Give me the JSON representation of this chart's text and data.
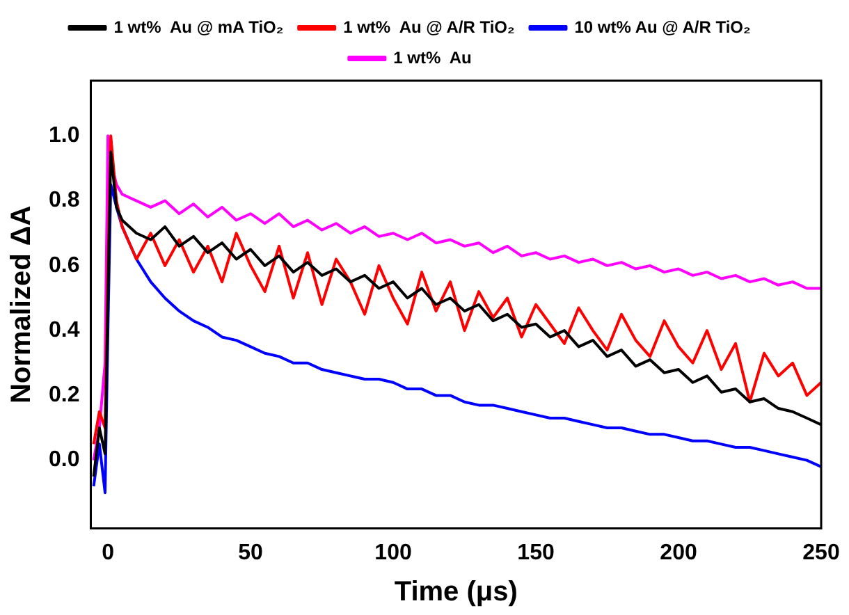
{
  "chart_data": {
    "type": "line",
    "xlabel": "Time (μs)",
    "ylabel": "Normalized ΔA",
    "x": [
      -5,
      -3,
      -1,
      0,
      1,
      3,
      5,
      10,
      15,
      20,
      25,
      30,
      35,
      40,
      45,
      50,
      55,
      60,
      65,
      70,
      75,
      80,
      85,
      90,
      95,
      100,
      105,
      110,
      115,
      120,
      125,
      130,
      135,
      140,
      145,
      150,
      155,
      160,
      165,
      170,
      175,
      180,
      185,
      190,
      195,
      200,
      205,
      210,
      215,
      220,
      225,
      230,
      235,
      240,
      245,
      250
    ],
    "xlim": [
      -6,
      250
    ],
    "xticks": [
      0,
      50,
      100,
      150,
      200,
      250
    ],
    "ylim": [
      -0.21,
      1.17
    ],
    "yticks": [
      {
        "value": 0,
        "label": "0.0"
      },
      0.2,
      0.4,
      0.6,
      0.8,
      {
        "value": 1,
        "label": "1.0"
      }
    ],
    "legend": "top",
    "grid": false,
    "marker": "none",
    "line_style": "solid",
    "series": [
      {
        "name": "1 wt%  Au @ mA TiO₂",
        "color": "#000000",
        "values": [
          -0.05,
          0.1,
          0.02,
          0.5,
          0.95,
          0.78,
          0.74,
          0.7,
          0.68,
          0.72,
          0.66,
          0.69,
          0.64,
          0.67,
          0.62,
          0.65,
          0.6,
          0.63,
          0.58,
          0.61,
          0.57,
          0.59,
          0.55,
          0.57,
          0.53,
          0.55,
          0.5,
          0.53,
          0.48,
          0.5,
          0.46,
          0.48,
          0.43,
          0.45,
          0.41,
          0.42,
          0.38,
          0.4,
          0.35,
          0.37,
          0.32,
          0.34,
          0.29,
          0.31,
          0.27,
          0.28,
          0.24,
          0.26,
          0.21,
          0.22,
          0.18,
          0.19,
          0.16,
          0.15,
          0.13,
          0.11
        ]
      },
      {
        "name": "1 wt%  Au @ A/R TiO₂",
        "color": "#ff0000",
        "values": [
          0.05,
          0.15,
          0.1,
          0.6,
          1.0,
          0.8,
          0.72,
          0.62,
          0.7,
          0.6,
          0.68,
          0.58,
          0.66,
          0.55,
          0.7,
          0.6,
          0.52,
          0.66,
          0.5,
          0.64,
          0.48,
          0.62,
          0.55,
          0.45,
          0.6,
          0.5,
          0.42,
          0.58,
          0.46,
          0.55,
          0.4,
          0.52,
          0.44,
          0.5,
          0.38,
          0.48,
          0.42,
          0.36,
          0.47,
          0.4,
          0.34,
          0.45,
          0.37,
          0.32,
          0.43,
          0.35,
          0.3,
          0.4,
          0.28,
          0.36,
          0.18,
          0.33,
          0.26,
          0.3,
          0.2,
          0.24
        ]
      },
      {
        "name": "10 wt% Au @ A/R TiO₂",
        "color": "#0000ff",
        "values": [
          -0.08,
          0.05,
          -0.1,
          0.4,
          0.85,
          0.78,
          0.72,
          0.62,
          0.55,
          0.5,
          0.46,
          0.43,
          0.41,
          0.38,
          0.37,
          0.35,
          0.33,
          0.32,
          0.3,
          0.3,
          0.28,
          0.27,
          0.26,
          0.25,
          0.25,
          0.24,
          0.22,
          0.22,
          0.2,
          0.2,
          0.18,
          0.17,
          0.17,
          0.16,
          0.15,
          0.14,
          0.13,
          0.13,
          0.12,
          0.11,
          0.1,
          0.1,
          0.09,
          0.08,
          0.08,
          0.07,
          0.06,
          0.06,
          0.05,
          0.04,
          0.04,
          0.03,
          0.02,
          0.01,
          0.0,
          -0.02
        ]
      },
      {
        "name": "1 wt%  Au",
        "color": "#ff00ff",
        "values": [
          0.0,
          0.1,
          0.3,
          1.0,
          0.92,
          0.85,
          0.82,
          0.8,
          0.78,
          0.8,
          0.76,
          0.79,
          0.75,
          0.78,
          0.74,
          0.76,
          0.73,
          0.76,
          0.72,
          0.74,
          0.71,
          0.73,
          0.7,
          0.72,
          0.69,
          0.7,
          0.68,
          0.7,
          0.67,
          0.68,
          0.66,
          0.67,
          0.64,
          0.66,
          0.63,
          0.64,
          0.62,
          0.63,
          0.61,
          0.62,
          0.6,
          0.61,
          0.59,
          0.6,
          0.58,
          0.59,
          0.57,
          0.58,
          0.56,
          0.57,
          0.55,
          0.56,
          0.54,
          0.55,
          0.53,
          0.53
        ]
      }
    ]
  }
}
